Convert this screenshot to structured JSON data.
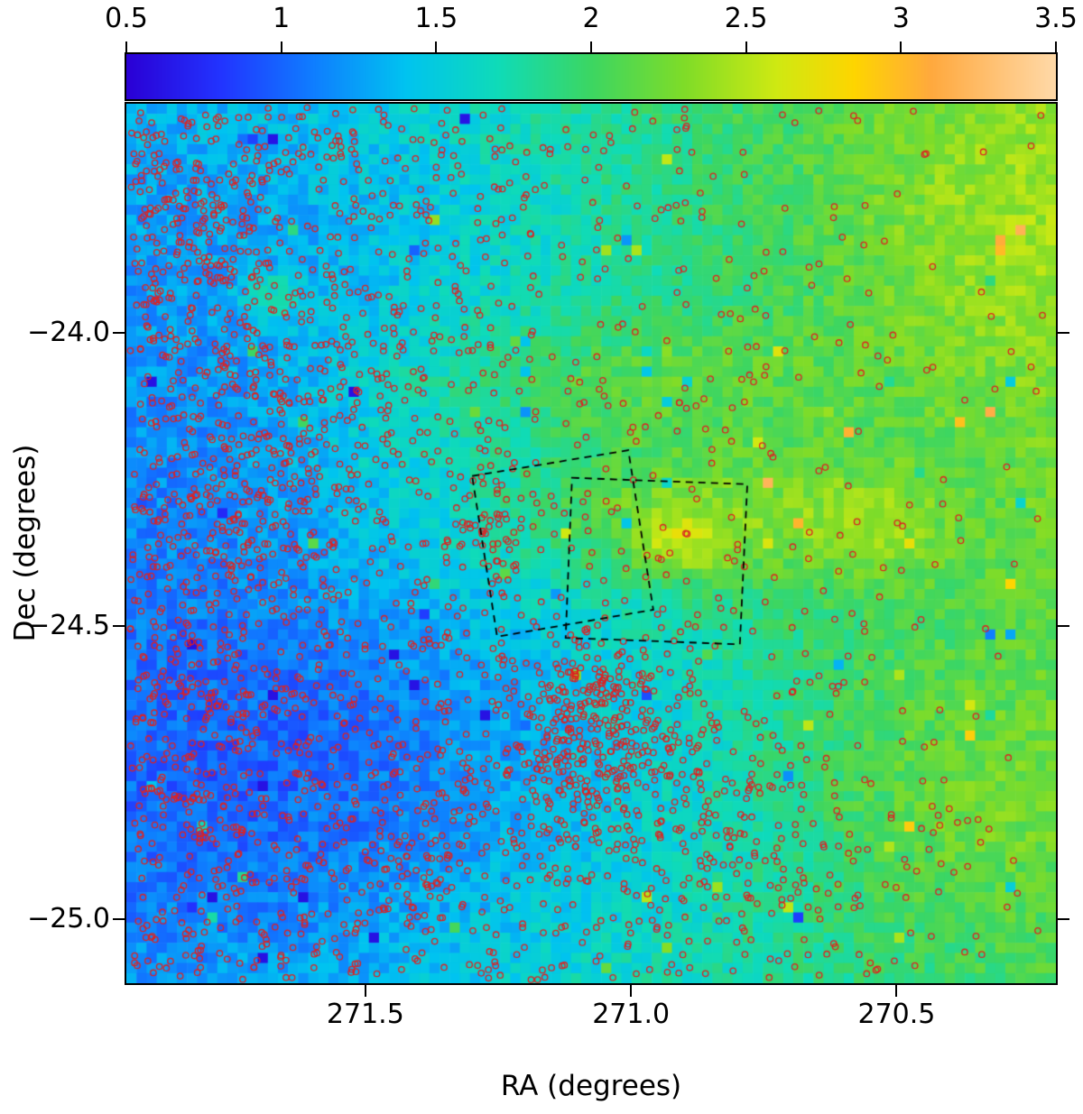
{
  "chart_data": {
    "type": "heatmap",
    "title": "",
    "description": "Sky map of extinction/column-density (rainbow colorbar 0.5-3.5) in RA/Dec with overlaid red open-circle source positions and two dashed survey-footprint boxes",
    "axes": {
      "x": {
        "title": "RA (degrees)",
        "range": [
          271.95,
          270.2
        ],
        "ticks": [
          {
            "v": 271.5,
            "label": "271.5"
          },
          {
            "v": 271.0,
            "label": "271.0"
          },
          {
            "v": 270.5,
            "label": "270.5"
          }
        ]
      },
      "y": {
        "title": "Dec (degrees)",
        "range": [
          -23.61,
          -25.11
        ],
        "ticks": [
          {
            "v": -24.0,
            "label": "−24.0"
          },
          {
            "v": -24.5,
            "label": "−24.5"
          },
          {
            "v": -25.0,
            "label": "−25.0"
          }
        ]
      }
    },
    "colorbar": {
      "min": 0.5,
      "max": 3.5,
      "ticks": [
        {
          "v": 0.5,
          "label": "0.5"
        },
        {
          "v": 1,
          "label": "1"
        },
        {
          "v": 1.5,
          "label": "1.5"
        },
        {
          "v": 2,
          "label": "2"
        },
        {
          "v": 2.5,
          "label": "2.5"
        },
        {
          "v": 3,
          "label": "3"
        },
        {
          "v": 3.5,
          "label": "3.5"
        }
      ],
      "stops": [
        [
          0.5,
          "#2a00d5"
        ],
        [
          0.8,
          "#2233ff"
        ],
        [
          1.1,
          "#0f7dff"
        ],
        [
          1.4,
          "#00c3f0"
        ],
        [
          1.7,
          "#0fdbb8"
        ],
        [
          2.0,
          "#3cd662"
        ],
        [
          2.3,
          "#7fdc28"
        ],
        [
          2.6,
          "#cfe912"
        ],
        [
          2.85,
          "#fed500"
        ],
        [
          3.1,
          "#ffa93e"
        ],
        [
          3.5,
          "#ffd9a8"
        ]
      ]
    },
    "heatmap": {
      "grid": [
        92,
        87
      ],
      "seed": 42,
      "base": {
        "a": 1.32,
        "bu": 0.72,
        "buv": 0.28
      },
      "blobs": [
        {
          "amp": 0.45,
          "cu": 0.6,
          "cv": 0.53,
          "sx": 0.13,
          "sy": 0.055
        },
        {
          "amp": 0.4,
          "cu": 0.595,
          "cv": 0.5,
          "sx": 0.035,
          "sy": 0.025
        },
        {
          "amp": 0.3,
          "cu": 0.53,
          "cv": 0.68,
          "sx": 0.16,
          "sy": 0.05
        },
        {
          "amp": -0.3,
          "cu": 0.13,
          "cv": 0.22,
          "sx": 0.2,
          "sy": 0.18
        },
        {
          "amp": -0.22,
          "cu": 0.38,
          "cv": 0.33,
          "sx": 0.18,
          "sy": 0.1
        },
        {
          "amp": -0.18,
          "cu": 0.1,
          "cv": 0.62,
          "sx": 0.12,
          "sy": 0.18
        },
        {
          "amp": -0.15,
          "cu": 0.45,
          "cv": 0.17,
          "sx": 0.25,
          "sy": 0.1
        },
        {
          "amp": 0.22,
          "cu": 0.88,
          "cv": 0.2,
          "sx": 0.12,
          "sy": 0.1
        },
        {
          "amp": -0.15,
          "cu": 0.28,
          "cv": 0.88,
          "sx": 0.14,
          "sy": 0.1
        },
        {
          "amp": 0.18,
          "cu": 0.92,
          "cv": 0.85,
          "sx": 0.12,
          "sy": 0.12
        },
        {
          "amp": 0.5,
          "cu": 0.155,
          "cv": 0.78,
          "sx": 0.022,
          "sy": 0.02
        },
        {
          "amp": 0.3,
          "cu": 0.8,
          "cv": 0.52,
          "sx": 0.05,
          "sy": 0.04
        }
      ],
      "noise": 0.17,
      "spike_prob": 0.012,
      "spike_min": 0.35,
      "spike_span": 0.55,
      "clamp": [
        0.6,
        3.2
      ]
    },
    "scatter": {
      "marker": "open-circle",
      "color": "#dd2222",
      "radius": 3.2,
      "line_width": 1.3,
      "seed": 1711,
      "background": {
        "n": 3800,
        "b0": 0.1,
        "b1": 0.92,
        "pow": 1.4,
        "topright_suppress": 0.55
      },
      "clusters": [
        {
          "cu": 0.07,
          "cv": 0.87,
          "sx": 0.06,
          "sy": 0.09,
          "n": 190
        },
        {
          "cu": 0.13,
          "cv": 0.55,
          "sx": 0.05,
          "sy": 0.1,
          "n": 150
        },
        {
          "cu": 0.1,
          "cv": 0.3,
          "sx": 0.08,
          "sy": 0.08,
          "n": 120
        },
        {
          "cu": 0.5,
          "cv": 0.3,
          "sx": 0.055,
          "sy": 0.055,
          "n": 260
        },
        {
          "cu": 0.39,
          "cv": 0.51,
          "sx": 0.018,
          "sy": 0.035,
          "n": 45
        },
        {
          "cu": 0.57,
          "cv": 0.22,
          "sx": 0.1,
          "sy": 0.06,
          "n": 150
        },
        {
          "cu": 0.3,
          "cv": 0.15,
          "sx": 0.12,
          "sy": 0.08,
          "n": 170
        },
        {
          "cu": 0.68,
          "cv": 0.12,
          "sx": 0.1,
          "sy": 0.06,
          "n": 120
        },
        {
          "cu": 0.22,
          "cv": 0.7,
          "sx": 0.1,
          "sy": 0.1,
          "n": 140
        }
      ]
    },
    "overlay_boxes": {
      "color": "#000000",
      "dash": [
        8,
        6
      ],
      "line_width": 1.8,
      "polygons": [
        [
          [
            271.299,
            -24.245
          ],
          [
            271.005,
            -24.201
          ],
          [
            270.958,
            -24.473
          ],
          [
            271.252,
            -24.519
          ]
        ],
        [
          [
            271.111,
            -24.248
          ],
          [
            270.781,
            -24.259
          ],
          [
            270.795,
            -24.532
          ],
          [
            271.123,
            -24.521
          ]
        ]
      ]
    }
  }
}
